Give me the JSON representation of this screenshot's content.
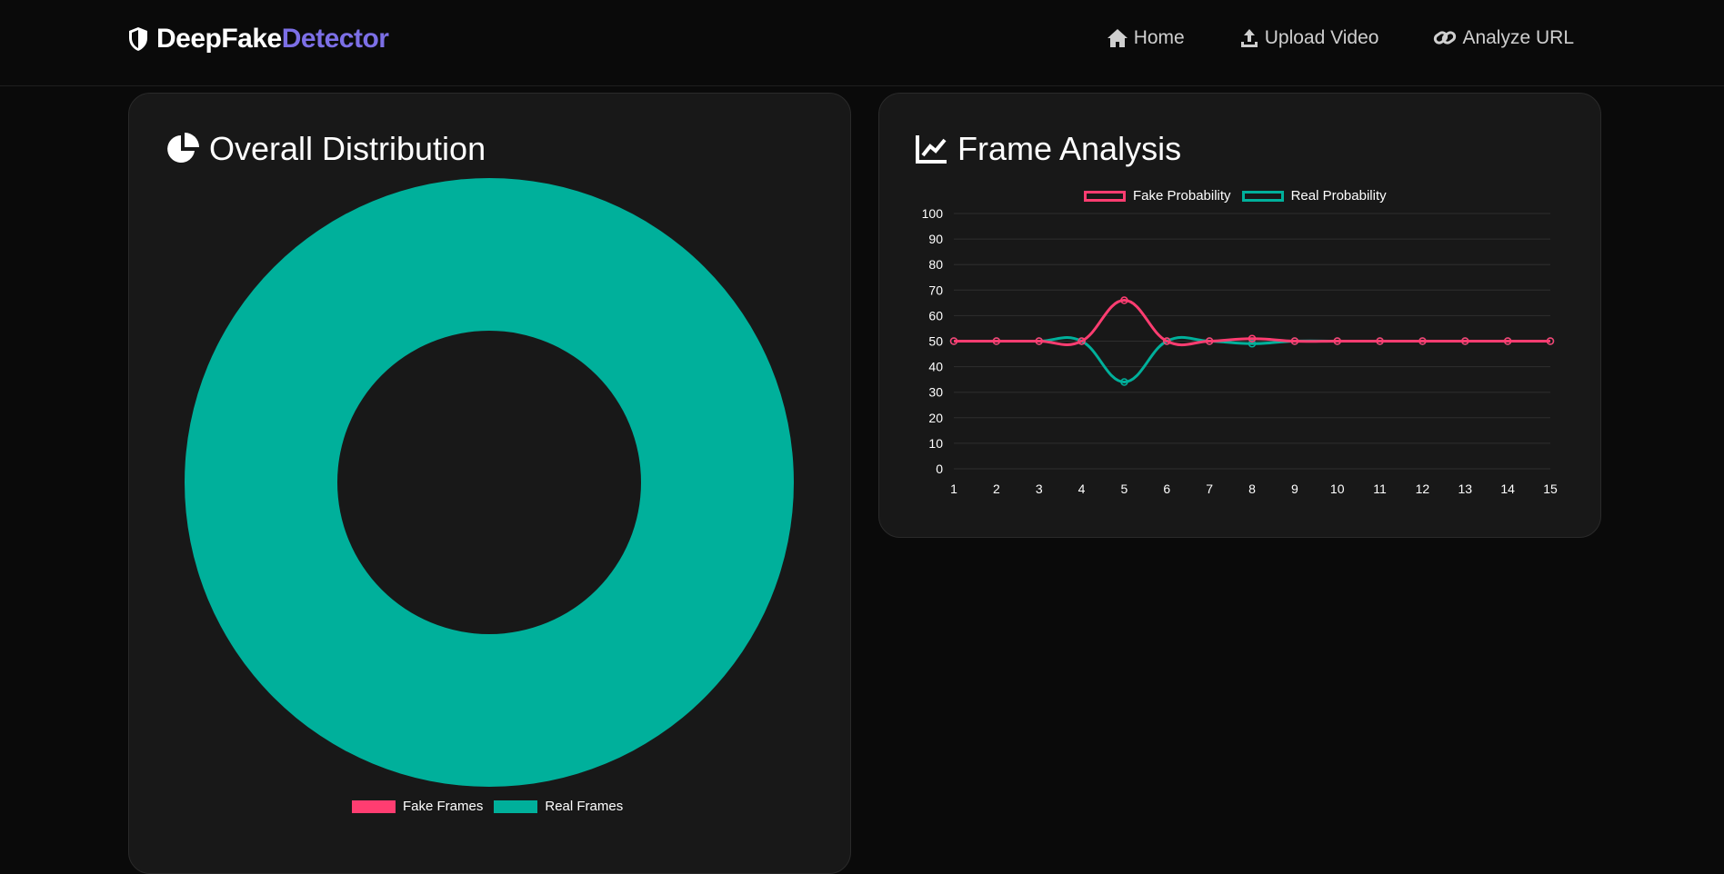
{
  "nav": {
    "brand_part1": "DeepFake",
    "brand_part2": "Detector",
    "links": [
      {
        "label": "Home",
        "icon": "home-icon"
      },
      {
        "label": "Upload Video",
        "icon": "upload-icon"
      },
      {
        "label": "Analyze URL",
        "icon": "link-icon"
      }
    ]
  },
  "colors": {
    "accent": "#7c6fe6",
    "fake": "#ff3d71",
    "real": "#00b09b"
  },
  "distribution": {
    "title": "Overall Distribution",
    "icon": "pie-chart-icon"
  },
  "frame_analysis": {
    "title": "Frame Analysis",
    "icon": "line-chart-icon"
  },
  "chart_data": [
    {
      "type": "pie",
      "variant": "doughnut",
      "labels": [
        "Fake Frames",
        "Real Frames"
      ],
      "values": [
        0,
        100
      ],
      "colors": [
        "#ff3d71",
        "#00b09b"
      ],
      "legend": "bottom"
    },
    {
      "type": "line",
      "x": [
        1,
        2,
        3,
        4,
        5,
        6,
        7,
        8,
        9,
        10,
        11,
        12,
        13,
        14,
        15
      ],
      "series": [
        {
          "name": "Fake Probability",
          "color": "#ff3d71",
          "values": [
            50,
            50,
            50,
            50,
            66,
            50,
            50,
            51,
            50,
            50,
            50,
            50,
            50,
            50,
            50
          ]
        },
        {
          "name": "Real Probability",
          "color": "#00b09b",
          "values": [
            50,
            50,
            50,
            50,
            34,
            50,
            50,
            49,
            50,
            50,
            50,
            50,
            50,
            50,
            50
          ]
        }
      ],
      "ylim": [
        0,
        100
      ],
      "yticks": [
        0,
        10,
        20,
        30,
        40,
        50,
        60,
        70,
        80,
        90,
        100
      ],
      "grid": true,
      "legend": "top"
    }
  ]
}
